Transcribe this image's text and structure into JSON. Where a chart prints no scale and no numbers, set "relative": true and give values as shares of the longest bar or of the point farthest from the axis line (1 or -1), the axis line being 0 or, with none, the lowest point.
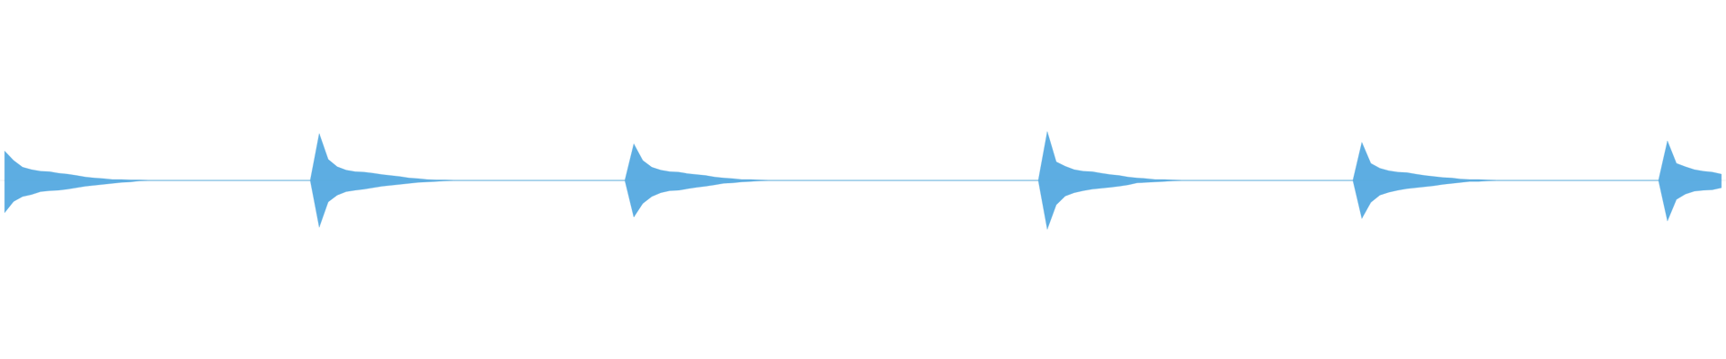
{
  "chart_data": {
    "type": "area",
    "relative": true,
    "categories": [
      null,
      null,
      null,
      null,
      null,
      null,
      null,
      null,
      null,
      null,
      null,
      null,
      null,
      null,
      null,
      null,
      null,
      null,
      null,
      null,
      null,
      null,
      null,
      null,
      null,
      null,
      null,
      null,
      null,
      null,
      null,
      null,
      null,
      null,
      null,
      null,
      null,
      null,
      null,
      null,
      null,
      null,
      null,
      null,
      null,
      null,
      null,
      null,
      null,
      null,
      null,
      null,
      null,
      null,
      null,
      null,
      null,
      null,
      null,
      null,
      null,
      null,
      null,
      null,
      null,
      null,
      null,
      null,
      null,
      null,
      null,
      null,
      null,
      null,
      null,
      null,
      null,
      null,
      null,
      null,
      null,
      null,
      null,
      null,
      null,
      null,
      null,
      null,
      null,
      null,
      null,
      null,
      null,
      null,
      null,
      null,
      null,
      null,
      null,
      null,
      null,
      null,
      null,
      null,
      null,
      null,
      null,
      null,
      null,
      null,
      null,
      null,
      null,
      null,
      null,
      null,
      null,
      null,
      null,
      null,
      null,
      null,
      null,
      null,
      null,
      null,
      null,
      null,
      null,
      null,
      null,
      null,
      null,
      null,
      null,
      null,
      null,
      null,
      null,
      null,
      null,
      null,
      null,
      null,
      null,
      null,
      null,
      null,
      null,
      null,
      null,
      null,
      null,
      null,
      null,
      null,
      null,
      null,
      null,
      null,
      null,
      null,
      null,
      null,
      null,
      null,
      null,
      null,
      null,
      null,
      null,
      null,
      null,
      null,
      null,
      null,
      null,
      null,
      null,
      null,
      null,
      null,
      null,
      null,
      null,
      null,
      null,
      null,
      null,
      null,
      null,
      null
    ],
    "series": [
      {
        "color": "#5dade2",
        "values": [
          0.6,
          0.41,
          0.27,
          0.22,
          0.19,
          0.18,
          0.15,
          0.13,
          0.1,
          0.07,
          0.05,
          0.04,
          0.02,
          0.02,
          0.01,
          0.01,
          0,
          0,
          0,
          0,
          0,
          0,
          0,
          0,
          0,
          0,
          0,
          0,
          0,
          0,
          0,
          0,
          0,
          0,
          0,
          0.96,
          0.43,
          0.28,
          0.21,
          0.18,
          0.17,
          0.15,
          0.12,
          0.1,
          0.08,
          0.05,
          0.04,
          0.02,
          0.01,
          0.01,
          0,
          0,
          0,
          0,
          0,
          0,
          0,
          0,
          0,
          0,
          0,
          0,
          0,
          0,
          0,
          0,
          0,
          0,
          0,
          0,
          0.75,
          0.41,
          0.27,
          0.21,
          0.18,
          0.17,
          0.14,
          0.12,
          0.1,
          0.07,
          0.05,
          0.04,
          0.02,
          0.02,
          0.01,
          0,
          0,
          0,
          0,
          0,
          0,
          0,
          0,
          0,
          0,
          0,
          0,
          0,
          0,
          0,
          0,
          0,
          0,
          0,
          0,
          0,
          0,
          0,
          0,
          0,
          0,
          0,
          0,
          0,
          0,
          0,
          1,
          0.38,
          0.29,
          0.22,
          0.19,
          0.18,
          0.15,
          0.12,
          0.1,
          0.07,
          0.05,
          0.04,
          0.02,
          0.02,
          0.01,
          0,
          0,
          0,
          0,
          0,
          0,
          0,
          0,
          0,
          0,
          0,
          0,
          0,
          0,
          0,
          0,
          0,
          0,
          0,
          0,
          0.78,
          0.35,
          0.25,
          0.2,
          0.17,
          0.16,
          0.13,
          0.1,
          0.08,
          0.06,
          0.05,
          0.03,
          0.02,
          0.02,
          0.01,
          0,
          0,
          0,
          0,
          0,
          0,
          0,
          0,
          0,
          0,
          0,
          0,
          0,
          0,
          0,
          0,
          0,
          0,
          0,
          0.81,
          0.35,
          0.28,
          0.22,
          0.19,
          0.17,
          0.13
        ]
      },
      {
        "color": "#5dade2",
        "values": [
          -0.66,
          -0.43,
          -0.33,
          -0.29,
          -0.23,
          -0.21,
          -0.2,
          -0.18,
          -0.15,
          -0.12,
          -0.1,
          -0.08,
          -0.06,
          -0.04,
          -0.03,
          -0.01,
          0,
          0,
          0,
          0,
          0,
          0,
          0,
          0,
          0,
          0,
          0,
          0,
          0,
          0,
          0,
          0,
          0,
          0,
          0,
          -0.96,
          -0.44,
          -0.3,
          -0.23,
          -0.2,
          -0.18,
          -0.15,
          -0.12,
          -0.1,
          -0.08,
          -0.06,
          -0.04,
          -0.03,
          -0.02,
          -0.01,
          0,
          0,
          0,
          0,
          0,
          0,
          0,
          0,
          0,
          0,
          0,
          0,
          0,
          0,
          0,
          0,
          0,
          0,
          0,
          0,
          -0.75,
          -0.47,
          -0.33,
          -0.25,
          -0.21,
          -0.2,
          -0.17,
          -0.14,
          -0.12,
          -0.09,
          -0.06,
          -0.05,
          -0.03,
          -0.02,
          -0.01,
          0,
          0,
          0,
          0,
          0,
          0,
          0,
          0,
          0,
          0,
          0,
          0,
          0,
          0,
          0,
          0,
          0,
          0,
          0,
          0,
          0,
          0,
          0,
          0,
          0,
          0,
          0,
          0,
          0,
          0,
          0,
          -1,
          -0.5,
          -0.32,
          -0.25,
          -0.21,
          -0.18,
          -0.16,
          -0.14,
          -0.12,
          -0.09,
          -0.05,
          -0.04,
          -0.03,
          -0.02,
          -0.01,
          0,
          0,
          0,
          0,
          0,
          0,
          0,
          0,
          0,
          0,
          0,
          0,
          0,
          0,
          0,
          0,
          0,
          0,
          0,
          0,
          -0.78,
          -0.45,
          -0.3,
          -0.24,
          -0.2,
          -0.17,
          -0.15,
          -0.13,
          -0.11,
          -0.08,
          -0.06,
          -0.04,
          -0.02,
          -0.02,
          -0.01,
          0,
          0,
          0,
          0,
          0,
          0,
          0,
          0,
          0,
          0,
          0,
          0,
          0,
          0,
          0,
          0,
          0,
          0,
          0,
          -0.83,
          -0.39,
          -0.28,
          -0.22,
          -0.2,
          -0.19,
          -0.15
        ]
      }
    ]
  }
}
